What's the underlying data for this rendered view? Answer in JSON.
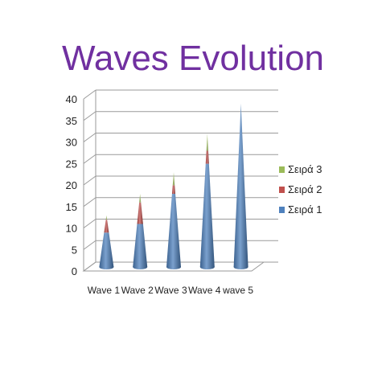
{
  "chart_data": {
    "type": "bar",
    "title": "Waves Evolution",
    "xlabel": "",
    "ylabel": "",
    "categories": [
      "Wave 1",
      "Wave 2",
      "Wave 3",
      "Wave 4",
      "wave 5"
    ],
    "ylim": [
      0,
      40
    ],
    "yticks": [
      "0",
      "5",
      "10",
      "15",
      "20",
      "25",
      "30",
      "35",
      "40"
    ],
    "stacked": true,
    "shape": "cone-3d",
    "grid": true,
    "legend_position": "right",
    "series": [
      {
        "name": "Σειρά 1",
        "color": "#4f81bd",
        "values": [
          8,
          10,
          17,
          24,
          38
        ]
      },
      {
        "name": "Σειρά 2",
        "color": "#c0504d",
        "values": [
          3,
          5,
          2,
          3,
          0
        ]
      },
      {
        "name": "Σειρά 3",
        "color": "#9bbb59",
        "values": [
          1,
          2,
          3,
          4,
          0
        ]
      }
    ]
  }
}
